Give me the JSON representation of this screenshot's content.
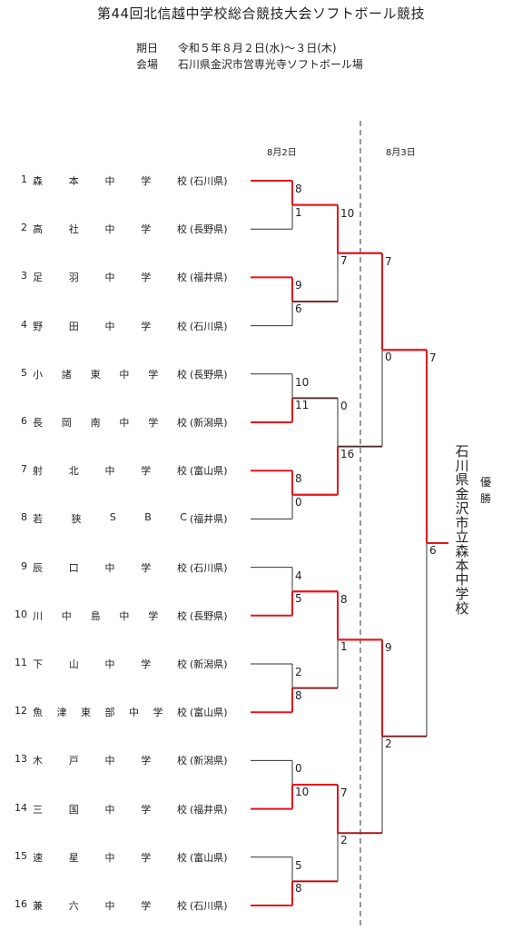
{
  "title": "第44回北信越中学校総合競技大会ソフトボール競技",
  "meta": [
    {
      "label": "期日",
      "value": "令和５年８月２日(水)～３日(木)"
    },
    {
      "label": "会場",
      "value": "石川県金沢市営専光寺ソフトボール場"
    }
  ],
  "dates": {
    "day1": "8月2日",
    "day2": "8月3日"
  },
  "teams": [
    {
      "num": "1",
      "chars": [
        "森",
        "本",
        "中",
        "学",
        "校"
      ],
      "pref": "(石川県)"
    },
    {
      "num": "2",
      "chars": [
        "高",
        "社",
        "中",
        "学",
        "校"
      ],
      "pref": "(長野県)"
    },
    {
      "num": "3",
      "chars": [
        "足",
        "羽",
        "中",
        "学",
        "校"
      ],
      "pref": "(福井県)"
    },
    {
      "num": "4",
      "chars": [
        "野",
        "田",
        "中",
        "学",
        "校"
      ],
      "pref": "(石川県)"
    },
    {
      "num": "5",
      "chars": [
        "小",
        "諸",
        "東",
        "中",
        "学",
        "校"
      ],
      "pref": "(長野県)"
    },
    {
      "num": "6",
      "chars": [
        "長",
        "岡",
        "南",
        "中",
        "学",
        "校"
      ],
      "pref": "(新潟県)"
    },
    {
      "num": "7",
      "chars": [
        "射",
        "北",
        "中",
        "学",
        "校"
      ],
      "pref": "(富山県)"
    },
    {
      "num": "8",
      "chars": [
        "若",
        "狭",
        "S",
        "B",
        "C"
      ],
      "pref": "(福井県)"
    },
    {
      "num": "9",
      "chars": [
        "辰",
        "口",
        "中",
        "学",
        "校"
      ],
      "pref": "(石川県)"
    },
    {
      "num": "10",
      "chars": [
        "川",
        "中",
        "島",
        "中",
        "学",
        "校"
      ],
      "pref": "(長野県)"
    },
    {
      "num": "11",
      "chars": [
        "下",
        "山",
        "中",
        "学",
        "校"
      ],
      "pref": "(新潟県)"
    },
    {
      "num": "12",
      "chars": [
        "魚",
        "津",
        "東",
        "部",
        "中",
        "学",
        "校"
      ],
      "pref": "(富山県)"
    },
    {
      "num": "13",
      "chars": [
        "木",
        "戸",
        "中",
        "学",
        "校"
      ],
      "pref": "(新潟県)"
    },
    {
      "num": "14",
      "chars": [
        "三",
        "国",
        "中",
        "学",
        "校"
      ],
      "pref": "(福井県)"
    },
    {
      "num": "15",
      "chars": [
        "速",
        "星",
        "中",
        "学",
        "校"
      ],
      "pref": "(富山県)"
    },
    {
      "num": "16",
      "chars": [
        "兼",
        "六",
        "中",
        "学",
        "校"
      ],
      "pref": "(石川県)"
    }
  ],
  "round1": [
    {
      "top": "8",
      "bottom": "1",
      "winner": "top"
    },
    {
      "top": "9",
      "bottom": "6",
      "winner": "top"
    },
    {
      "top": "10",
      "bottom": "11",
      "winner": "bottom"
    },
    {
      "top": "8",
      "bottom": "0",
      "winner": "top"
    },
    {
      "top": "4",
      "bottom": "5",
      "winner": "bottom"
    },
    {
      "top": "2",
      "bottom": "8",
      "winner": "bottom"
    },
    {
      "top": "0",
      "bottom": "10",
      "winner": "bottom"
    },
    {
      "top": "5",
      "bottom": "8",
      "winner": "bottom"
    }
  ],
  "round2": [
    {
      "top": "10",
      "bottom": "7",
      "winner": "top"
    },
    {
      "top": "0",
      "bottom": "16",
      "winner": "bottom"
    },
    {
      "top": "8",
      "bottom": "1",
      "winner": "top"
    },
    {
      "top": "7",
      "bottom": "2",
      "winner": "top"
    }
  ],
  "round3": [
    {
      "top": "7",
      "bottom": "0",
      "winner": "top"
    },
    {
      "top": "9",
      "bottom": "2",
      "winner": "top"
    }
  ],
  "final": {
    "top": "7",
    "bottom": "6",
    "winner": "top"
  },
  "champion": "石川県金沢市立森本中学校",
  "champion_label": "優勝",
  "colors": {
    "win": "#e8141e",
    "lose": "#333333"
  }
}
